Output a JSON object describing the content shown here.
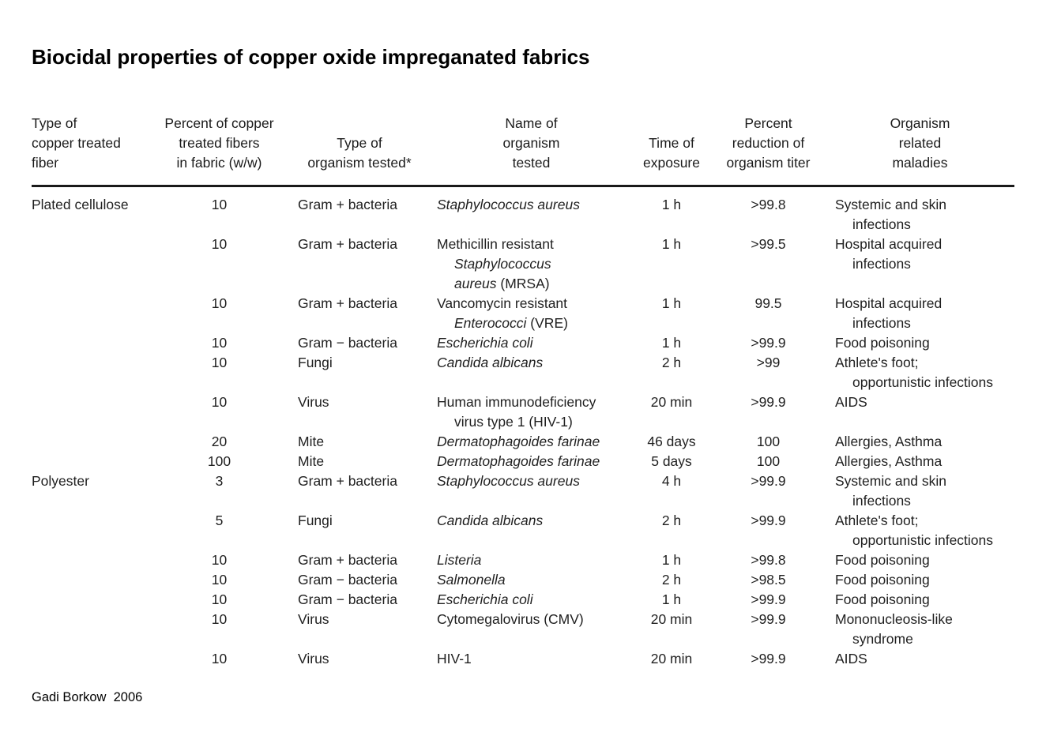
{
  "page": {
    "title": "Biocidal properties of copper oxide impreganated fabrics",
    "credit": "Gadi Borkow  2006"
  },
  "table": {
    "headers": [
      "Type of\ncopper treated\nfiber",
      "Percent of copper\ntreated fibers\nin fabric (w/w)",
      "Type of\norganism tested*",
      "Name of\norganism\ntested",
      "Time of\nexposure",
      "Percent\nreduction of\norganism titer",
      "Organism\nrelated\nmaladies"
    ],
    "rows": [
      [
        "Plated cellulose",
        "10",
        "Gram + bacteria",
        "*Staphylococcus aureus*",
        "1 h",
        ">99.8",
        "Systemic and skin\n  infections"
      ],
      [
        "",
        "10",
        "Gram + bacteria",
        "Methicillin resistant\n  *Staphylococcus*\n  *aureus* (MRSA)",
        "1 h",
        ">99.5",
        "Hospital acquired\n  infections"
      ],
      [
        "",
        "10",
        "Gram + bacteria",
        "Vancomycin resistant\n  *Enterococci* (VRE)",
        "1 h",
        "99.5",
        "Hospital acquired\n  infections"
      ],
      [
        "",
        "10",
        "Gram − bacteria",
        "*Escherichia coli*",
        "1 h",
        ">99.9",
        "Food poisoning"
      ],
      [
        "",
        "10",
        "Fungi",
        "*Candida albicans*",
        "2 h",
        ">99",
        "Athlete's foot;\n  opportunistic infections"
      ],
      [
        "",
        "10",
        "Virus",
        "Human immunodeficiency\n  virus type 1 (HIV-1)",
        "20 min",
        ">99.9",
        "AIDS"
      ],
      [
        "",
        "20",
        "Mite",
        "*Dermatophagoides farinae*",
        "46 days",
        "100",
        "Allergies, Asthma"
      ],
      [
        "",
        "100",
        "Mite",
        "*Dermatophagoides farinae*",
        "5 days",
        "100",
        "Allergies, Asthma"
      ],
      [
        "Polyester",
        "3",
        "Gram + bacteria",
        "*Staphylococcus aureus*",
        "4 h",
        ">99.9",
        "Systemic and skin\n  infections"
      ],
      [
        "",
        "5",
        "Fungi",
        "*Candida albicans*",
        "2 h",
        ">99.9",
        "Athlete's foot;\n  opportunistic infections"
      ],
      [
        "",
        "10",
        "Gram + bacteria",
        "*Listeria*",
        "1 h",
        ">99.8",
        "Food poisoning"
      ],
      [
        "",
        "10",
        "Gram − bacteria",
        "*Salmonella*",
        "2 h",
        ">98.5",
        "Food poisoning"
      ],
      [
        "",
        "10",
        "Gram − bacteria",
        "*Escherichia coli*",
        "1 h",
        ">99.9",
        "Food poisoning"
      ],
      [
        "",
        "10",
        "Virus",
        "Cytomegalovirus (CMV)",
        "20 min",
        ">99.9",
        "Mononucleosis-like\n  syndrome"
      ],
      [
        "",
        "10",
        "Virus",
        "HIV-1",
        "20 min",
        ">99.9",
        "AIDS"
      ]
    ]
  }
}
